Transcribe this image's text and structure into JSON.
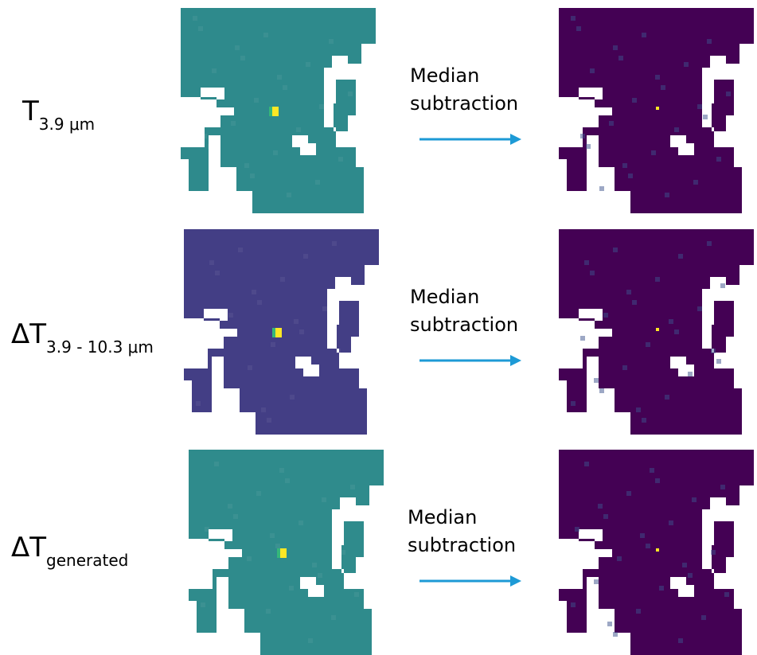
{
  "rows": [
    {
      "label": {
        "main": "T",
        "sub": "3.9 μm"
      },
      "arrow_label": "Median subtraction"
    },
    {
      "label": {
        "main": "ΔT",
        "sub": "3.9 - 10.3 μm"
      },
      "arrow_label": "Median subtraction"
    },
    {
      "label": {
        "main": "ΔT",
        "sub": "generated"
      },
      "arrow_label": "Median subtraction"
    }
  ]
}
